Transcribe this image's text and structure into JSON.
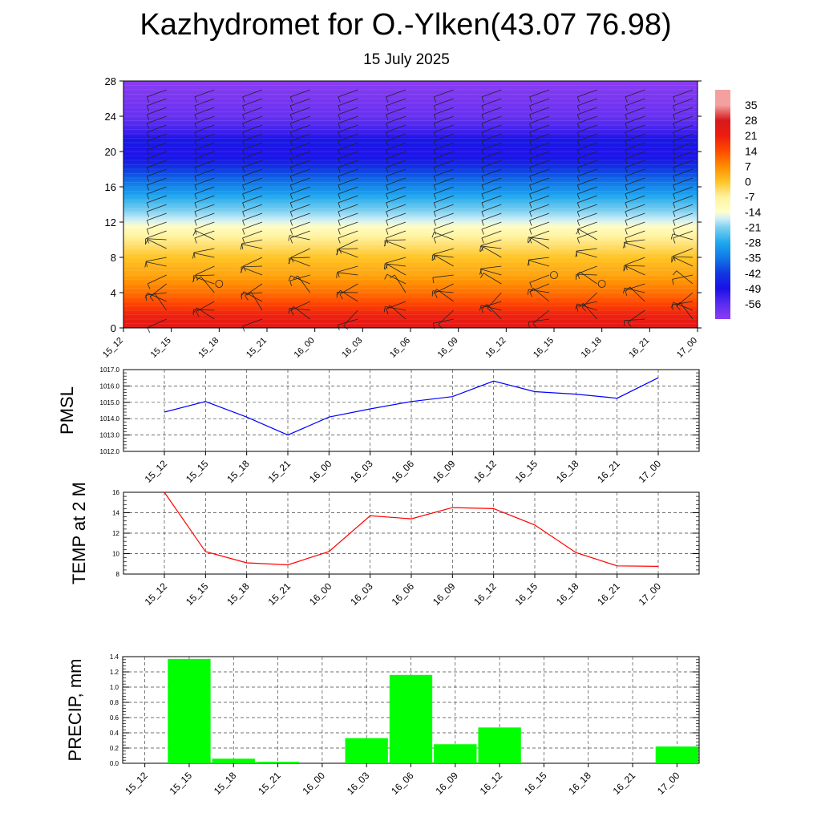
{
  "title": "Kazhydromet for O.-Ylken(43.07 76.98)",
  "subtitle": "15 July 2025",
  "time_labels": [
    "15_12",
    "15_15",
    "15_18",
    "15_21",
    "16_00",
    "16_03",
    "16_06",
    "16_09",
    "16_12",
    "16_15",
    "16_18",
    "16_21",
    "17_00"
  ],
  "chart_data": [
    {
      "type": "heatmap",
      "name": "upper-air-temperature-wind-cross-section",
      "x": [
        "15_12",
        "15_15",
        "15_18",
        "15_21",
        "16_00",
        "16_03",
        "16_06",
        "16_09",
        "16_12",
        "16_15",
        "16_18",
        "16_21",
        "17_00"
      ],
      "ylim": [
        0,
        28
      ],
      "yticks": [
        0,
        4,
        8,
        12,
        16,
        20,
        24,
        28
      ],
      "colorbar_labels": [
        "35",
        "28",
        "21",
        "14",
        "7",
        "0",
        "-7",
        "-14",
        "-21",
        "-28",
        "-35",
        "-42",
        "-49",
        "-56"
      ],
      "colormap_stops": [
        {
          "value": 35,
          "color": "#f4a0a0"
        },
        {
          "value": 28,
          "color": "#d7191c"
        },
        {
          "value": 21,
          "color": "#ee1c0f"
        },
        {
          "value": 14,
          "color": "#ff4b00"
        },
        {
          "value": 7,
          "color": "#ff8c00"
        },
        {
          "value": 0,
          "color": "#ffc425"
        },
        {
          "value": -7,
          "color": "#fff2a0"
        },
        {
          "value": -14,
          "color": "#ffffc8"
        },
        {
          "value": -17,
          "color": "#cfeef8"
        },
        {
          "value": -21,
          "color": "#7dd0f0"
        },
        {
          "value": -28,
          "color": "#1ea8ee"
        },
        {
          "value": -35,
          "color": "#1078e8"
        },
        {
          "value": -42,
          "color": "#1038e0"
        },
        {
          "value": -49,
          "color": "#1a10e8"
        },
        {
          "value": -56,
          "color": "#5a2cf0"
        },
        {
          "value": -63,
          "color": "#8a3cf2"
        }
      ],
      "temperature_profile": [
        {
          "level": 0,
          "value": 26
        },
        {
          "level": 2,
          "value": 18
        },
        {
          "level": 4,
          "value": 10
        },
        {
          "level": 6,
          "value": 4
        },
        {
          "level": 8,
          "value": 0
        },
        {
          "level": 10,
          "value": -6
        },
        {
          "level": 11,
          "value": -10
        },
        {
          "level": 12,
          "value": -16
        },
        {
          "level": 14,
          "value": -24
        },
        {
          "level": 16,
          "value": -33
        },
        {
          "level": 18,
          "value": -42
        },
        {
          "level": 19,
          "value": -47
        },
        {
          "level": 20,
          "value": -50
        },
        {
          "level": 21,
          "value": -47
        },
        {
          "level": 22,
          "value": -52
        },
        {
          "level": 24,
          "value": -58
        },
        {
          "level": 28,
          "value": -63
        }
      ]
    },
    {
      "type": "line",
      "name": "pmsl",
      "ylabel": "PMSL",
      "x": [
        "15_12",
        "15_15",
        "15_18",
        "15_21",
        "16_00",
        "16_03",
        "16_06",
        "16_09",
        "16_12",
        "16_15",
        "16_18",
        "16_21",
        "17_00"
      ],
      "values": [
        1014.4,
        1015.05,
        1014.1,
        1013.0,
        1014.1,
        1014.6,
        1015.05,
        1015.35,
        1016.3,
        1015.65,
        1015.5,
        1015.25,
        1016.5
      ],
      "ylim": [
        1012.0,
        1017.0
      ],
      "ytick_labels": [
        "1012.0",
        "1013.0",
        "1014.0",
        "1015.0",
        "1016.0",
        "1017.0"
      ],
      "color": "#0000ff",
      "grid": true
    },
    {
      "type": "line",
      "name": "temp-2m",
      "ylabel": "TEMP at 2 M",
      "x": [
        "15_12",
        "15_15",
        "15_18",
        "15_21",
        "16_00",
        "16_03",
        "16_06",
        "16_09",
        "16_12",
        "16_15",
        "16_18",
        "16_21",
        "17_00"
      ],
      "values": [
        16.0,
        10.2,
        9.1,
        8.9,
        10.2,
        13.7,
        13.4,
        14.5,
        14.4,
        12.8,
        10.1,
        8.8,
        8.75
      ],
      "ylim": [
        8,
        16
      ],
      "ytick_labels": [
        "8",
        "10",
        "12",
        "14",
        "16"
      ],
      "color": "#ff0000",
      "grid": true
    },
    {
      "type": "bar",
      "name": "precip",
      "ylabel": "PRECIP, mm",
      "categories": [
        "15_12",
        "15_15",
        "15_18",
        "15_21",
        "16_00",
        "16_03",
        "16_06",
        "16_09",
        "16_12",
        "16_15",
        "16_18",
        "16_21",
        "17_00"
      ],
      "values": [
        0,
        1.37,
        0.06,
        0.02,
        0,
        0.33,
        1.16,
        0.25,
        0.47,
        0,
        0,
        0,
        0.22
      ],
      "ylim": [
        0,
        1.4
      ],
      "ytick_labels": [
        "0.0",
        "0.2",
        "0.4",
        "0.6",
        "0.8",
        "1.0",
        "1.2",
        "1.4"
      ],
      "color": "#00ff00",
      "grid": true
    }
  ]
}
